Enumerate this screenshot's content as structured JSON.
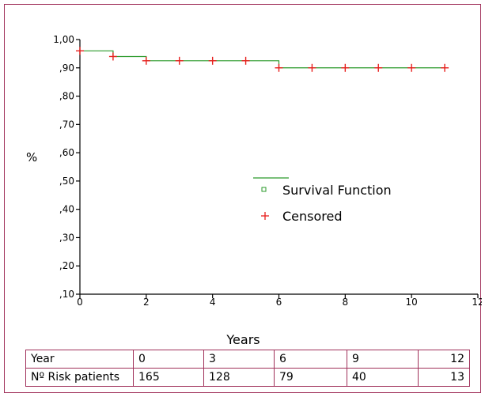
{
  "chart_data": {
    "type": "line",
    "title": "",
    "xlabel": "Years",
    "ylabel": "%",
    "xlim": [
      0,
      12
    ],
    "ylim": [
      0.1,
      1.0
    ],
    "x_ticks": [
      "0",
      "2",
      "4",
      "6",
      "8",
      "10",
      "12"
    ],
    "y_ticks": [
      "1,00",
      ",90",
      ",80",
      ",70",
      ",60",
      ",50",
      ",40",
      ",30",
      ",20",
      ",10"
    ],
    "grid": false,
    "legend_position": "center-right",
    "series": [
      {
        "name": "Survival Function",
        "style": "step",
        "color": "#2a9a2a",
        "x": [
          0,
          1,
          2,
          6,
          11
        ],
        "y": [
          0.96,
          0.94,
          0.925,
          0.9,
          0.9
        ]
      },
      {
        "name": "Censored",
        "style": "markers",
        "color": "#e8201e",
        "x": [
          0,
          1,
          2,
          3,
          4,
          5,
          6,
          7,
          8,
          9,
          10,
          11
        ],
        "y": [
          0.96,
          0.94,
          0.925,
          0.925,
          0.925,
          0.925,
          0.9,
          0.9,
          0.9,
          0.9,
          0.9,
          0.9
        ]
      }
    ]
  },
  "risk_table": {
    "header_label": "Year",
    "row_label": "Nº Risk patients",
    "years": [
      "0",
      "3",
      "6",
      "9",
      "12"
    ],
    "patients": [
      "165",
      "128",
      "79",
      "40",
      "13"
    ]
  }
}
